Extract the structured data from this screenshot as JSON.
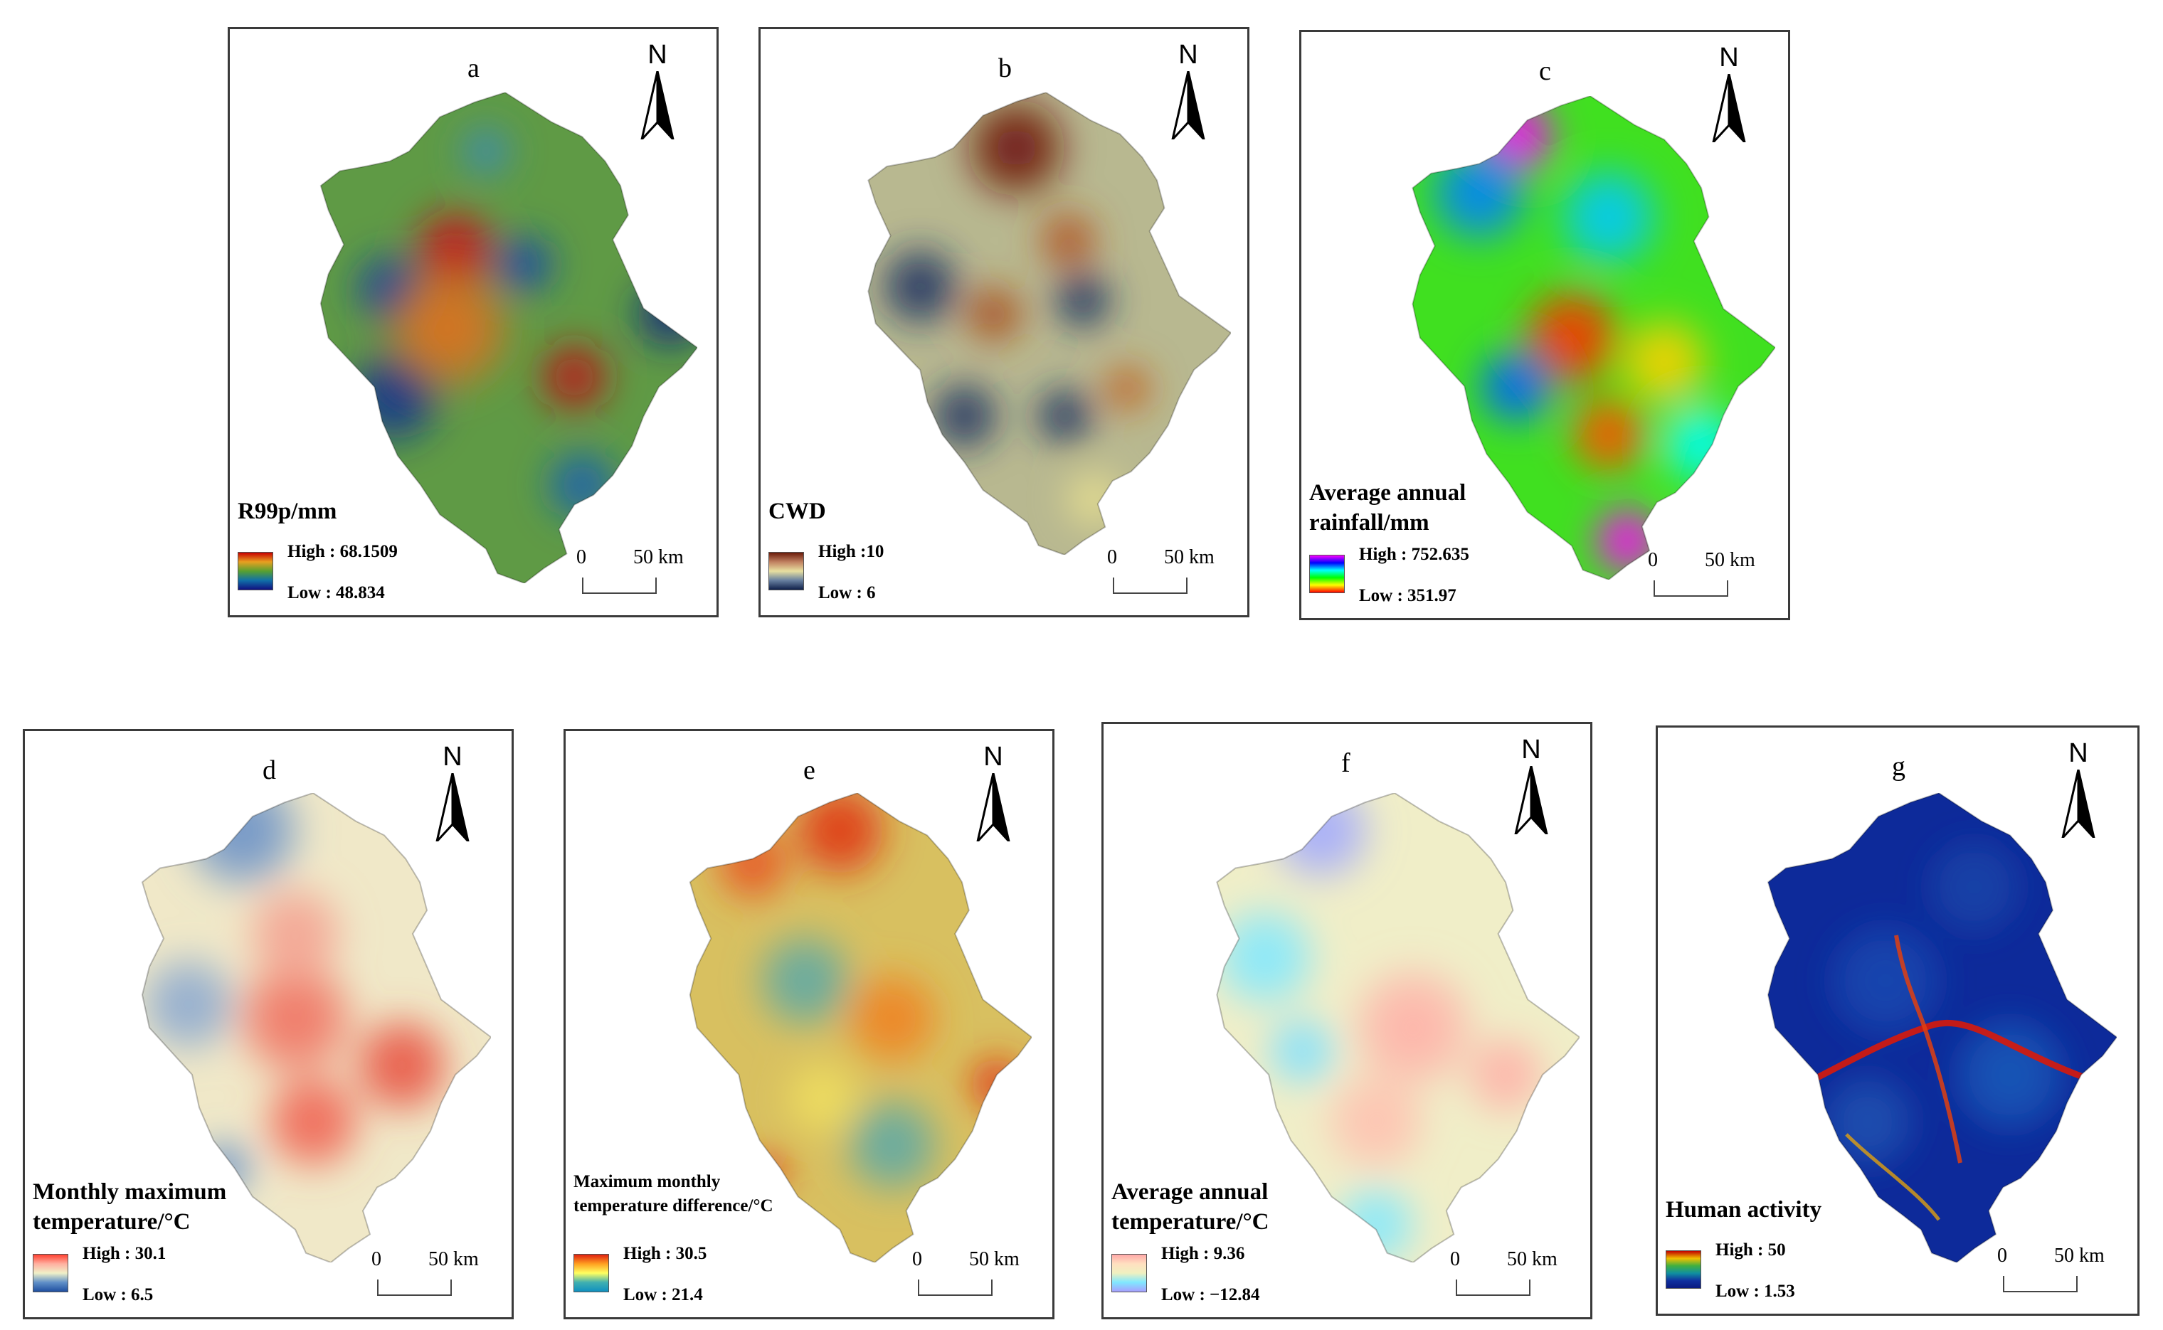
{
  "north_label": "N",
  "scale_zero": "0",
  "scale_dist": "50 km",
  "panels": [
    {
      "letter": "a",
      "title": "R99p/mm",
      "high": "High : 68.1509",
      "low": "Low : 48.834",
      "ramp": [
        "#c80000",
        "#e8a020",
        "#58a030",
        "#1070a8",
        "#101080"
      ],
      "base": "#5f9a45",
      "spots": [
        [
          "#c8141e",
          0.37,
          0.32,
          0.08
        ],
        [
          "#b81818",
          0.68,
          0.58,
          0.07
        ],
        [
          "#1840a0",
          0.2,
          0.4,
          0.07
        ],
        [
          "#103090",
          0.21,
          0.62,
          0.09
        ],
        [
          "#1848a8",
          0.55,
          0.35,
          0.06
        ],
        [
          "#102880",
          0.93,
          0.45,
          0.07
        ],
        [
          "#e07020",
          0.35,
          0.48,
          0.12
        ],
        [
          "#3a8ab8",
          0.45,
          0.12,
          0.05
        ],
        [
          "#1860b0",
          0.7,
          0.8,
          0.07
        ]
      ]
    },
    {
      "letter": "b",
      "title": "CWD",
      "high": "High :10",
      "low": "Low : 6",
      "ramp": [
        "#6b1a0a",
        "#c08060",
        "#e8e0a0",
        "#6880a0",
        "#10204a"
      ],
      "base": "#b8b890",
      "spots": [
        [
          "#6b1208",
          0.42,
          0.12,
          0.1
        ],
        [
          "#b05020",
          0.56,
          0.32,
          0.06
        ],
        [
          "#a84a18",
          0.36,
          0.48,
          0.06
        ],
        [
          "#1a3060",
          0.16,
          0.42,
          0.08
        ],
        [
          "#1a3060",
          0.6,
          0.45,
          0.06
        ],
        [
          "#1a3060",
          0.28,
          0.7,
          0.07
        ],
        [
          "#1a3060",
          0.55,
          0.7,
          0.06
        ],
        [
          "#c06020",
          0.72,
          0.64,
          0.05
        ],
        [
          "#e8e090",
          0.63,
          0.88,
          0.06
        ]
      ]
    },
    {
      "letter": "c",
      "title": "Average annual\nrainfall/mm",
      "high": "High : 752.635",
      "low": "Low : 351.97",
      "ramp": [
        "#ff00ff",
        "#0000ff",
        "#00ffff",
        "#00ff00",
        "#ffff00",
        "#ff0000"
      ],
      "base": "#40e020",
      "spots": [
        [
          "#ff00ff",
          0.3,
          0.08,
          0.08
        ],
        [
          "#0080ff",
          0.2,
          0.2,
          0.1
        ],
        [
          "#00c8ff",
          0.55,
          0.25,
          0.1
        ],
        [
          "#ff3000",
          0.45,
          0.5,
          0.1
        ],
        [
          "#ffd000",
          0.7,
          0.55,
          0.09
        ],
        [
          "#0060ff",
          0.3,
          0.6,
          0.08
        ],
        [
          "#ff5000",
          0.55,
          0.7,
          0.08
        ],
        [
          "#ff00ff",
          0.6,
          0.92,
          0.07
        ],
        [
          "#00ffff",
          0.8,
          0.72,
          0.08
        ]
      ]
    },
    {
      "letter": "d",
      "title": "Monthly maximum\ntemperature/°C",
      "high": "High : 30.1",
      "low": "Low : 6.5",
      "ramp": [
        "#ff4030",
        "#ffb0a0",
        "#f0f0c8",
        "#6090c8",
        "#2050a0"
      ],
      "base": "#f0e8c8",
      "spots": [
        [
          "#6890c8",
          0.3,
          0.08,
          0.12
        ],
        [
          "#8aa8d0",
          0.15,
          0.45,
          0.1
        ],
        [
          "#f07060",
          0.45,
          0.48,
          0.12
        ],
        [
          "#e85040",
          0.75,
          0.58,
          0.1
        ],
        [
          "#f06050",
          0.5,
          0.7,
          0.1
        ],
        [
          "#6890c8",
          0.25,
          0.8,
          0.06
        ],
        [
          "#f4a090",
          0.45,
          0.3,
          0.1
        ]
      ]
    },
    {
      "letter": "e",
      "title": "Maximum monthly\n temperature difference/°C",
      "small": true,
      "high": "High : 30.5",
      "low": "Low : 21.4",
      "ramp": [
        "#e02010",
        "#ffa020",
        "#ffff60",
        "#40b0b0",
        "#1090c0"
      ],
      "base": "#d8c060",
      "spots": [
        [
          "#e03010",
          0.45,
          0.08,
          0.1
        ],
        [
          "#e85020",
          0.2,
          0.15,
          0.08
        ],
        [
          "#5aa8a8",
          0.35,
          0.4,
          0.1
        ],
        [
          "#f08020",
          0.6,
          0.48,
          0.1
        ],
        [
          "#e03010",
          0.9,
          0.62,
          0.06
        ],
        [
          "#5aa8a8",
          0.6,
          0.75,
          0.1
        ],
        [
          "#e03010",
          0.25,
          0.8,
          0.04
        ],
        [
          "#f0e060",
          0.4,
          0.65,
          0.08
        ]
      ]
    },
    {
      "letter": "f",
      "title": "Average annual\ntemperature/°C",
      "high": "High : 9.36",
      "low": "Low : −12.84",
      "ramp": [
        "#ffa8a8",
        "#ffe0c0",
        "#f0f0c0",
        "#80e8ff",
        "#a8a0ff"
      ],
      "base": "#f0eec8",
      "spots": [
        [
          "#a0a8ff",
          0.3,
          0.08,
          0.1
        ],
        [
          "#80e8ff",
          0.15,
          0.35,
          0.1
        ],
        [
          "#ffb0a8",
          0.55,
          0.5,
          0.12
        ],
        [
          "#ffb0a8",
          0.8,
          0.6,
          0.08
        ],
        [
          "#ffc0b0",
          0.45,
          0.7,
          0.1
        ],
        [
          "#80e8ff",
          0.45,
          0.92,
          0.08
        ],
        [
          "#80e0ff",
          0.25,
          0.55,
          0.07
        ]
      ]
    },
    {
      "letter": "g",
      "title": "Human activity",
      "high": "High : 50",
      "low": "Low : 1.53",
      "ramp": [
        "#c00000",
        "#f0c000",
        "#40b040",
        "#1090a0",
        "#1030a0",
        "#0a1a80"
      ],
      "base": "#0d2a9a",
      "spots": [
        [
          "#1848b0",
          0.35,
          0.4,
          0.12
        ],
        [
          "#1858b8",
          0.7,
          0.6,
          0.12
        ],
        [
          "#1e50b0",
          0.3,
          0.7,
          0.1
        ],
        [
          "#1a44a8",
          0.6,
          0.2,
          0.1
        ]
      ]
    }
  ]
}
